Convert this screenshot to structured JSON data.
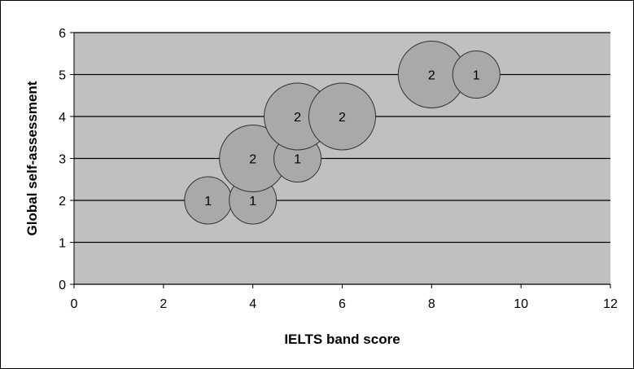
{
  "chart_data": {
    "type": "bubble",
    "xlabel": "IELTS band score",
    "ylabel": "Global self-assessment",
    "xlim": [
      0,
      12
    ],
    "ylim": [
      0,
      6
    ],
    "xticks": [
      "0",
      "2",
      "4",
      "6",
      "8",
      "10",
      "12"
    ],
    "yticks": [
      "0",
      "1",
      "2",
      "3",
      "4",
      "5",
      "6"
    ],
    "grid": "horizontal",
    "legend": "none",
    "colors": {
      "plot_background": "#c0c0c0",
      "bubble_fill": "#a9a9a9",
      "bubble_stroke": "#333333",
      "gridline": "#000000"
    },
    "points": [
      {
        "x": 3,
        "y": 2,
        "size": 1,
        "label": "1"
      },
      {
        "x": 4,
        "y": 2,
        "size": 1,
        "label": "1"
      },
      {
        "x": 4,
        "y": 3,
        "size": 2,
        "label": "2"
      },
      {
        "x": 5,
        "y": 3,
        "size": 1,
        "label": "1"
      },
      {
        "x": 5,
        "y": 4,
        "size": 2,
        "label": "2"
      },
      {
        "x": 6,
        "y": 4,
        "size": 2,
        "label": "2"
      },
      {
        "x": 8,
        "y": 5,
        "size": 2,
        "label": "2"
      },
      {
        "x": 9,
        "y": 5,
        "size": 1,
        "label": "1"
      }
    ]
  }
}
